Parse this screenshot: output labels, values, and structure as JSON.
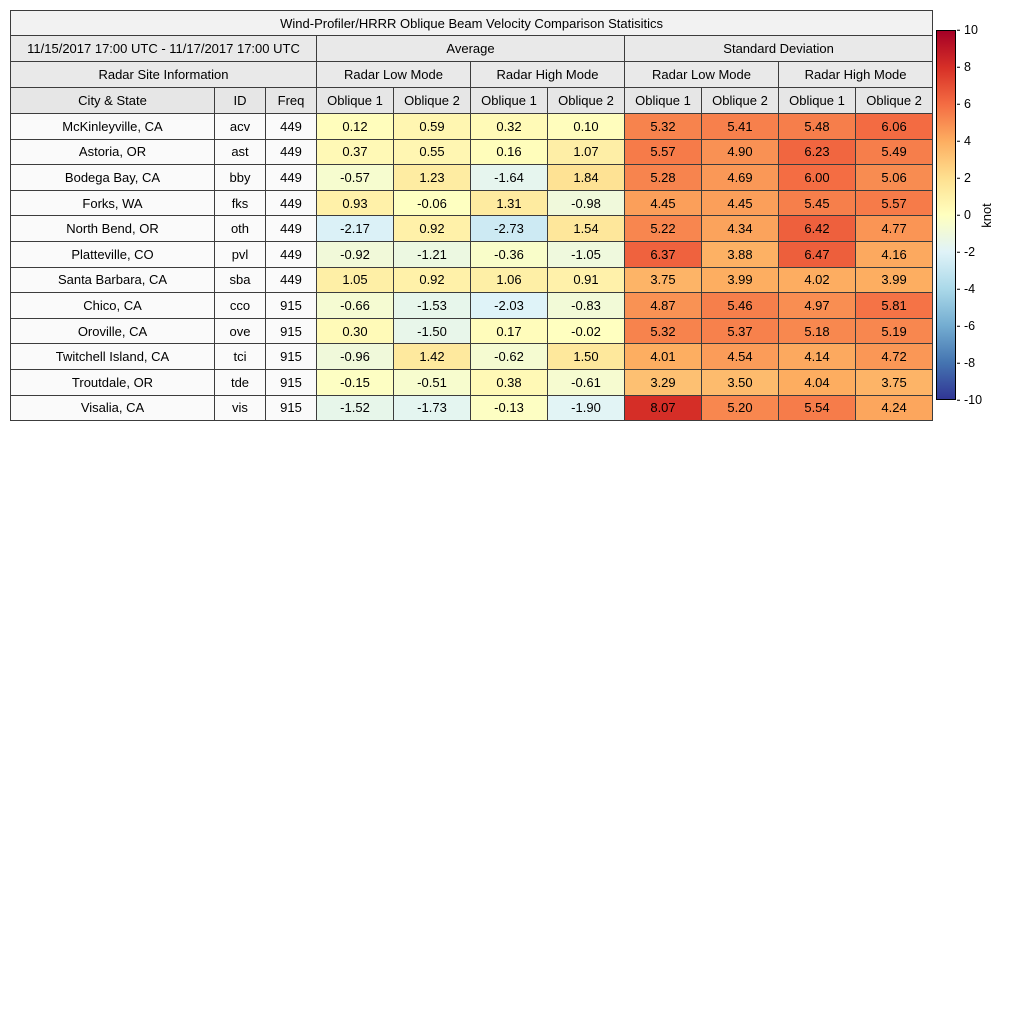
{
  "title": "Wind-Profiler/HRRR Oblique Beam Velocity Comparison Statisitics",
  "header": {
    "date_range": "11/15/2017 17:00 UTC - 11/17/2017 17:00 UTC",
    "average_label": "Average",
    "std_label": "Standard Deviation",
    "site_info_label": "Radar Site Information",
    "mode_labels": [
      "Radar Low Mode",
      "Radar High Mode",
      "Radar Low Mode",
      "Radar High Mode"
    ],
    "col_labels": [
      "City & State",
      "ID",
      "Freq",
      "Oblique 1",
      "Oblique 2",
      "Oblique 1",
      "Oblique 2",
      "Oblique 1",
      "Oblique 2",
      "Oblique 1",
      "Oblique 2"
    ]
  },
  "colorbar": {
    "label": "knot",
    "min": -10,
    "max": 10,
    "ticks": [
      "10",
      "8",
      "6",
      "4",
      "2",
      "0",
      "-2",
      "-4",
      "-6",
      "-8",
      "-10"
    ],
    "stops": [
      "#313695",
      "#4575b1",
      "#74add1",
      "#abd9e9",
      "#e0f3f8",
      "#ffffbf",
      "#fee090",
      "#fdae61",
      "#f46d43",
      "#d73027",
      "#a50026"
    ]
  },
  "chart_data": {
    "type": "heatmap",
    "title": "Wind-Profiler/HRRR Oblique Beam Velocity Comparison Statisitics",
    "period": "11/15/2017 17:00 UTC - 11/17/2017 17:00 UTC",
    "unit": "knot",
    "value_range": [
      -10,
      10
    ],
    "value_columns": [
      "Average Radar Low Mode Oblique 1",
      "Average Radar Low Mode Oblique 2",
      "Average Radar High Mode Oblique 1",
      "Average Radar High Mode Oblique 2",
      "Standard Deviation Radar Low Mode Oblique 1",
      "Standard Deviation Radar Low Mode Oblique 2",
      "Standard Deviation Radar High Mode Oblique 1",
      "Standard Deviation Radar High Mode Oblique 2"
    ],
    "rows": [
      {
        "city": "McKinleyville, CA",
        "id": "acv",
        "freq": "449",
        "values": [
          0.12,
          0.59,
          0.32,
          0.1,
          5.32,
          5.41,
          5.48,
          6.06
        ]
      },
      {
        "city": "Astoria, OR",
        "id": "ast",
        "freq": "449",
        "values": [
          0.37,
          0.55,
          0.16,
          1.07,
          5.57,
          4.9,
          6.23,
          5.49
        ]
      },
      {
        "city": "Bodega Bay, CA",
        "id": "bby",
        "freq": "449",
        "values": [
          -0.57,
          1.23,
          -1.64,
          1.84,
          5.28,
          4.69,
          6.0,
          5.06
        ]
      },
      {
        "city": "Forks, WA",
        "id": "fks",
        "freq": "449",
        "values": [
          0.93,
          -0.06,
          1.31,
          -0.98,
          4.45,
          4.45,
          5.45,
          5.57
        ]
      },
      {
        "city": "North Bend, OR",
        "id": "oth",
        "freq": "449",
        "values": [
          -2.17,
          0.92,
          -2.73,
          1.54,
          5.22,
          4.34,
          6.42,
          4.77
        ]
      },
      {
        "city": "Platteville, CO",
        "id": "pvl",
        "freq": "449",
        "values": [
          -0.92,
          -1.21,
          -0.36,
          -1.05,
          6.37,
          3.88,
          6.47,
          4.16
        ]
      },
      {
        "city": "Santa Barbara, CA",
        "id": "sba",
        "freq": "449",
        "values": [
          1.05,
          0.92,
          1.06,
          0.91,
          3.75,
          3.99,
          4.02,
          3.99
        ]
      },
      {
        "city": "Chico, CA",
        "id": "cco",
        "freq": "915",
        "values": [
          -0.66,
          -1.53,
          -2.03,
          -0.83,
          4.87,
          5.46,
          4.97,
          5.81
        ]
      },
      {
        "city": "Oroville, CA",
        "id": "ove",
        "freq": "915",
        "values": [
          0.3,
          -1.5,
          0.17,
          -0.02,
          5.32,
          5.37,
          5.18,
          5.19
        ]
      },
      {
        "city": "Twitchell Island, CA",
        "id": "tci",
        "freq": "915",
        "values": [
          -0.96,
          1.42,
          -0.62,
          1.5,
          4.01,
          4.54,
          4.14,
          4.72
        ]
      },
      {
        "city": "Troutdale, OR",
        "id": "tde",
        "freq": "915",
        "values": [
          -0.15,
          -0.51,
          0.38,
          -0.61,
          3.29,
          3.5,
          4.04,
          3.75
        ]
      },
      {
        "city": "Visalia, CA",
        "id": "vis",
        "freq": "915",
        "values": [
          -1.52,
          -1.73,
          -0.13,
          -1.9,
          8.07,
          5.2,
          5.54,
          4.24
        ]
      }
    ]
  }
}
